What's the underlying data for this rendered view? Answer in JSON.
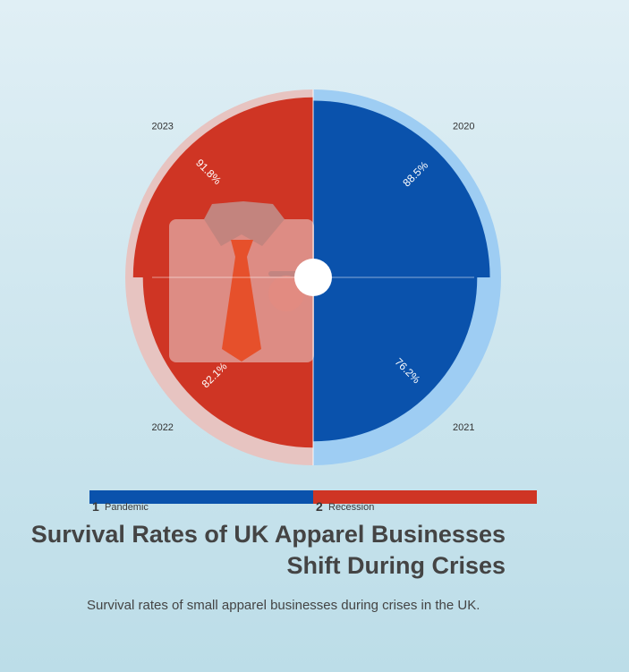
{
  "chart_data": {
    "type": "polar-area",
    "categories": [
      "2020",
      "2021",
      "2022",
      "2023"
    ],
    "values": [
      88.5,
      76.2,
      82.1,
      91.8
    ],
    "value_labels": [
      "88.5%",
      "76.2%",
      "82.1%",
      "91.8%"
    ],
    "segments": [
      "Pandemic",
      "Pandemic",
      "Recession",
      "Recession"
    ],
    "legend": [
      {
        "number": "1",
        "label": "Pandemic",
        "color": "#0a52ac"
      },
      {
        "number": "2",
        "label": "Recession",
        "color": "#cf3524"
      }
    ],
    "colors": {
      "pandemic": "#0a52ac",
      "pandemic_light": "#9ecdf3",
      "recession": "#cf3524",
      "recession_light": "#e7c4c1"
    },
    "title": "Survival Rates of UK Apparel Businesses Shift During Crises",
    "subtitle": "Survival rates of small apparel businesses during crises in the UK."
  }
}
